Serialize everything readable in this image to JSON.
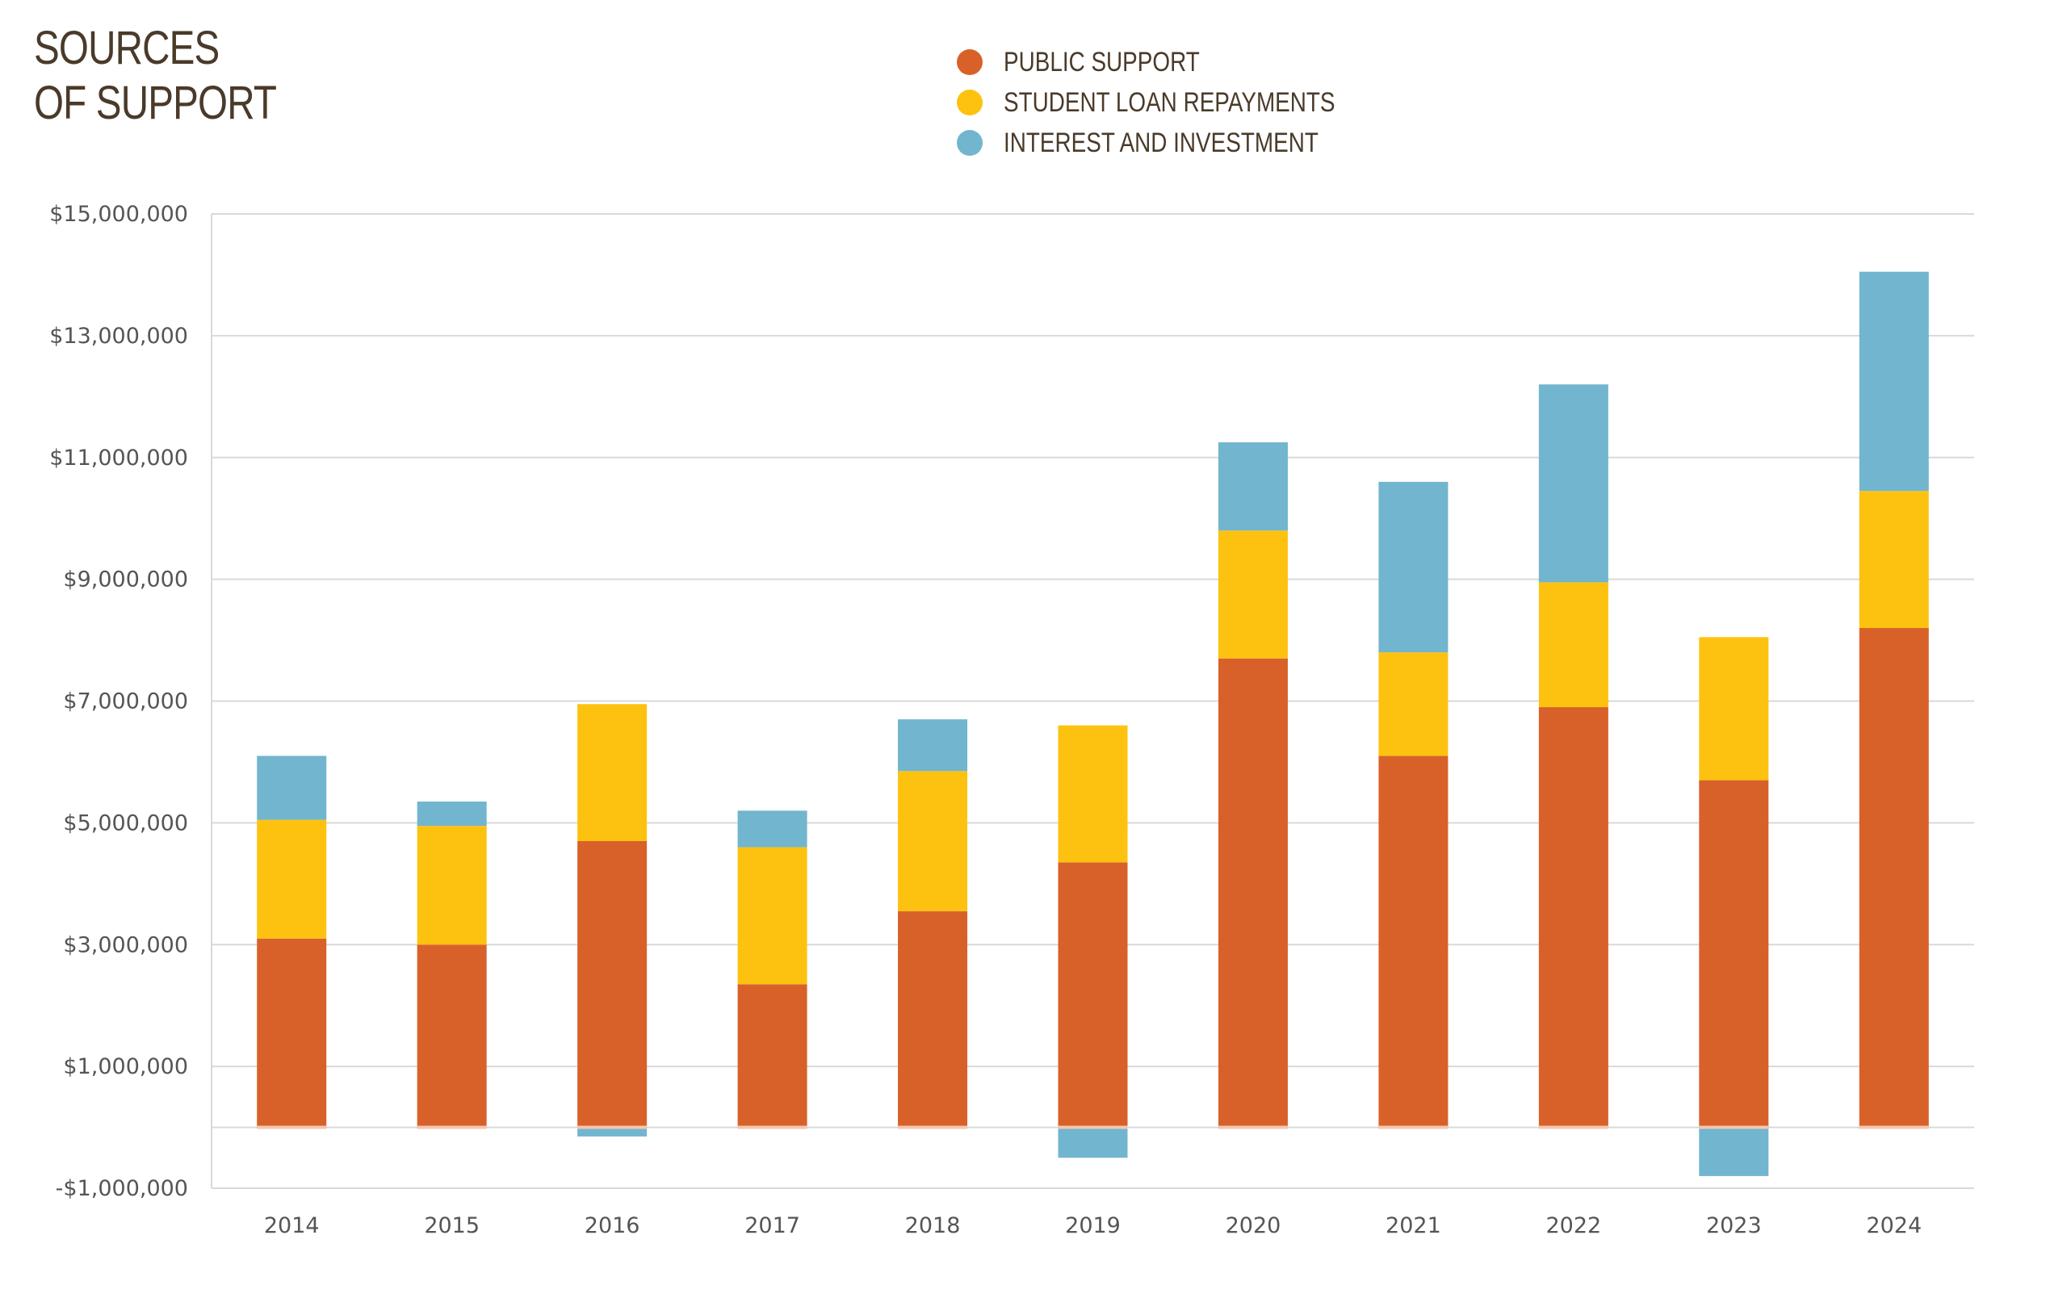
{
  "title_lines": [
    "SOURCES",
    "OF SUPPORT"
  ],
  "colors": {
    "public_support": "#D8612A",
    "student_loan": "#FDC20F",
    "interest": "#72B5CE",
    "grid": "#d9d9d9",
    "zero_line": "#f3c7b0"
  },
  "chart_data": {
    "type": "bar",
    "stacked": true,
    "title": "SOURCES OF SUPPORT",
    "categories": [
      "2014",
      "2015",
      "2016",
      "2017",
      "2018",
      "2019",
      "2020",
      "2021",
      "2022",
      "2023",
      "2024"
    ],
    "series": [
      {
        "name": "PUBLIC SUPPORT",
        "color": "#D8612A",
        "values": [
          3100000,
          3000000,
          4700000,
          2350000,
          3550000,
          4350000,
          7700000,
          6100000,
          6900000,
          5700000,
          8200000
        ]
      },
      {
        "name": "STUDENT LOAN REPAYMENTS",
        "color": "#FDC20F",
        "values": [
          1950000,
          1950000,
          2250000,
          2250000,
          2300000,
          2250000,
          2100000,
          1700000,
          2050000,
          2350000,
          2250000
        ]
      },
      {
        "name": "INTEREST AND INVESTMENT",
        "color": "#72B5CE",
        "values": [
          1050000,
          400000,
          -150000,
          600000,
          850000,
          -500000,
          1450000,
          2800000,
          3250000,
          -800000,
          3600000
        ]
      }
    ],
    "ylim": [
      -1000000,
      15000000
    ],
    "yticks": [
      -1000000,
      1000000,
      3000000,
      5000000,
      7000000,
      9000000,
      11000000,
      13000000,
      15000000
    ],
    "ytick_labels": [
      "-$1,000,000",
      "$1,000,000",
      "$3,000,000",
      "$5,000,000",
      "$7,000,000",
      "$9,000,000",
      "$11,000,000",
      "$13,000,000",
      "$15,000,000"
    ],
    "grid": true,
    "legend_position": "top-center"
  }
}
